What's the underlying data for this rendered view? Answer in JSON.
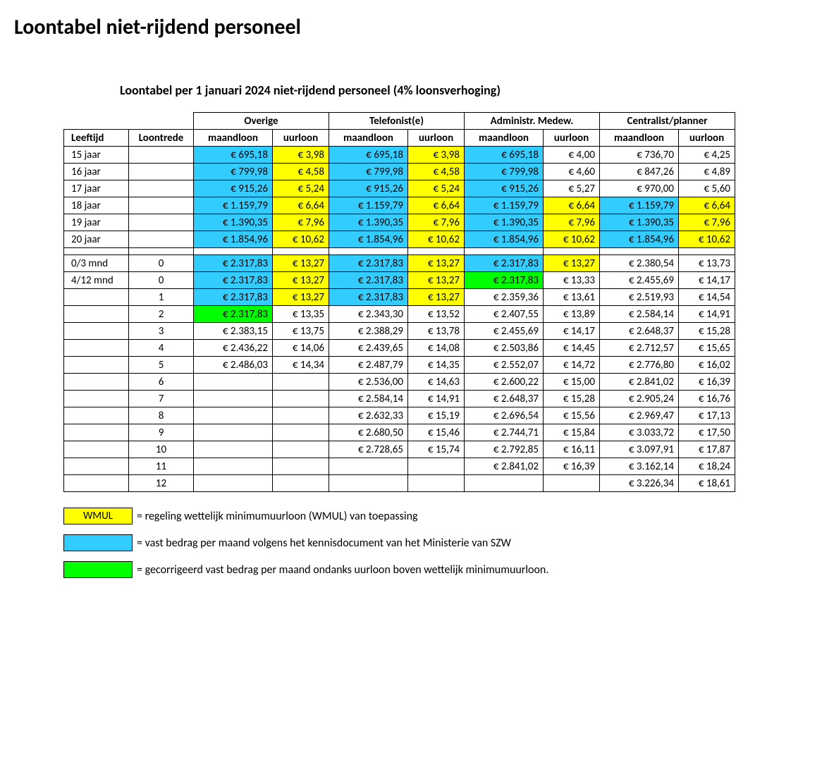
{
  "page_title": "Loontabel niet-rijdend personeel",
  "table_title": "Loontabel per 1 januari 2024 niet-rijdend personeel (4% loonsverhoging)",
  "colors": {
    "cyan": "#33ccff",
    "yellow": "#ffff00",
    "green": "#00ff00",
    "border": "#000000",
    "background": "#ffffff"
  },
  "columns": {
    "leeftijd": "Leeftijd",
    "loontrede": "Loontrede",
    "groups": [
      "Overige",
      "Telefonist(e)",
      "Administr. Medew.",
      "Centralist/planner"
    ],
    "sub": {
      "maand": "maandloon",
      "uur": "uurloon"
    }
  },
  "rows_top": [
    {
      "leeftijd": "15 jaar",
      "loontrede": "",
      "cells": [
        {
          "v": "€ 695,18",
          "c": "cyan"
        },
        {
          "v": "€ 3,98",
          "c": "yellow"
        },
        {
          "v": "€ 695,18",
          "c": "cyan"
        },
        {
          "v": "€ 3,98",
          "c": "yellow"
        },
        {
          "v": "€ 695,18",
          "c": "cyan"
        },
        {
          "v": "€ 4,00",
          "c": ""
        },
        {
          "v": "€ 736,70",
          "c": ""
        },
        {
          "v": "€ 4,25",
          "c": ""
        }
      ]
    },
    {
      "leeftijd": "16 jaar",
      "loontrede": "",
      "cells": [
        {
          "v": "€ 799,98",
          "c": "cyan"
        },
        {
          "v": "€ 4,58",
          "c": "yellow"
        },
        {
          "v": "€ 799,98",
          "c": "cyan"
        },
        {
          "v": "€ 4,58",
          "c": "yellow"
        },
        {
          "v": "€ 799,98",
          "c": "cyan"
        },
        {
          "v": "€ 4,60",
          "c": ""
        },
        {
          "v": "€ 847,26",
          "c": ""
        },
        {
          "v": "€ 4,89",
          "c": ""
        }
      ]
    },
    {
      "leeftijd": "17 jaar",
      "loontrede": "",
      "cells": [
        {
          "v": "€ 915,26",
          "c": "cyan"
        },
        {
          "v": "€ 5,24",
          "c": "yellow"
        },
        {
          "v": "€ 915,26",
          "c": "cyan"
        },
        {
          "v": "€ 5,24",
          "c": "yellow"
        },
        {
          "v": "€ 915,26",
          "c": "cyan"
        },
        {
          "v": "€ 5,27",
          "c": ""
        },
        {
          "v": "€ 970,00",
          "c": ""
        },
        {
          "v": "€ 5,60",
          "c": ""
        }
      ]
    },
    {
      "leeftijd": "18 jaar",
      "loontrede": "",
      "cells": [
        {
          "v": "€ 1.159,79",
          "c": "cyan"
        },
        {
          "v": "€ 6,64",
          "c": "yellow"
        },
        {
          "v": "€ 1.159,79",
          "c": "cyan"
        },
        {
          "v": "€ 6,64",
          "c": "yellow"
        },
        {
          "v": "€ 1.159,79",
          "c": "cyan"
        },
        {
          "v": "€ 6,64",
          "c": "yellow"
        },
        {
          "v": "€ 1.159,79",
          "c": "cyan"
        },
        {
          "v": "€ 6,64",
          "c": "yellow"
        }
      ]
    },
    {
      "leeftijd": "19 jaar",
      "loontrede": "",
      "cells": [
        {
          "v": "€ 1.390,35",
          "c": "cyan"
        },
        {
          "v": "€ 7,96",
          "c": "yellow"
        },
        {
          "v": "€ 1.390,35",
          "c": "cyan"
        },
        {
          "v": "€ 7,96",
          "c": "yellow"
        },
        {
          "v": "€ 1.390,35",
          "c": "cyan"
        },
        {
          "v": "€ 7,96",
          "c": "yellow"
        },
        {
          "v": "€ 1.390,35",
          "c": "cyan"
        },
        {
          "v": "€ 7,96",
          "c": "yellow"
        }
      ]
    },
    {
      "leeftijd": "20 jaar",
      "loontrede": "",
      "cells": [
        {
          "v": "€ 1.854,96",
          "c": "cyan"
        },
        {
          "v": "€ 10,62",
          "c": "yellow"
        },
        {
          "v": "€ 1.854,96",
          "c": "cyan"
        },
        {
          "v": "€ 10,62",
          "c": "yellow"
        },
        {
          "v": "€ 1.854,96",
          "c": "cyan"
        },
        {
          "v": "€ 10,62",
          "c": "yellow"
        },
        {
          "v": "€ 1.854,96",
          "c": "cyan"
        },
        {
          "v": "€ 10,62",
          "c": "yellow"
        }
      ]
    }
  ],
  "rows_bottom": [
    {
      "leeftijd": "0/3 mnd",
      "loontrede": "0",
      "cells": [
        {
          "v": "€ 2.317,83",
          "c": "cyan"
        },
        {
          "v": "€ 13,27",
          "c": "yellow"
        },
        {
          "v": "€ 2.317,83",
          "c": "cyan"
        },
        {
          "v": "€ 13,27",
          "c": "yellow"
        },
        {
          "v": "€ 2.317,83",
          "c": "cyan"
        },
        {
          "v": "€ 13,27",
          "c": "yellow"
        },
        {
          "v": "€ 2.380,54",
          "c": ""
        },
        {
          "v": "€ 13,73",
          "c": ""
        }
      ]
    },
    {
      "leeftijd": "4/12 mnd",
      "loontrede": "0",
      "cells": [
        {
          "v": "€ 2.317,83",
          "c": "cyan"
        },
        {
          "v": "€ 13,27",
          "c": "yellow"
        },
        {
          "v": "€ 2.317,83",
          "c": "cyan"
        },
        {
          "v": "€ 13,27",
          "c": "yellow"
        },
        {
          "v": "€ 2.317,83",
          "c": "green"
        },
        {
          "v": "€ 13,33",
          "c": ""
        },
        {
          "v": "€ 2.455,69",
          "c": ""
        },
        {
          "v": "€ 14,17",
          "c": ""
        }
      ]
    },
    {
      "leeftijd": "",
      "loontrede": "1",
      "cells": [
        {
          "v": "€ 2.317,83",
          "c": "cyan"
        },
        {
          "v": "€ 13,27",
          "c": "yellow"
        },
        {
          "v": "€ 2.317,83",
          "c": "cyan"
        },
        {
          "v": "€ 13,27",
          "c": "yellow"
        },
        {
          "v": "€ 2.359,36",
          "c": ""
        },
        {
          "v": "€ 13,61",
          "c": ""
        },
        {
          "v": "€ 2.519,93",
          "c": ""
        },
        {
          "v": "€ 14,54",
          "c": ""
        }
      ]
    },
    {
      "leeftijd": "",
      "loontrede": "2",
      "cells": [
        {
          "v": "€ 2.317,83",
          "c": "green"
        },
        {
          "v": "€ 13,35",
          "c": ""
        },
        {
          "v": "€ 2.343,30",
          "c": ""
        },
        {
          "v": "€ 13,52",
          "c": ""
        },
        {
          "v": "€ 2.407,55",
          "c": ""
        },
        {
          "v": "€ 13,89",
          "c": ""
        },
        {
          "v": "€ 2.584,14",
          "c": ""
        },
        {
          "v": "€ 14,91",
          "c": ""
        }
      ]
    },
    {
      "leeftijd": "",
      "loontrede": "3",
      "cells": [
        {
          "v": "€ 2.383,15",
          "c": ""
        },
        {
          "v": "€ 13,75",
          "c": ""
        },
        {
          "v": "€ 2.388,29",
          "c": ""
        },
        {
          "v": "€ 13,78",
          "c": ""
        },
        {
          "v": "€ 2.455,69",
          "c": ""
        },
        {
          "v": "€ 14,17",
          "c": ""
        },
        {
          "v": "€ 2.648,37",
          "c": ""
        },
        {
          "v": "€ 15,28",
          "c": ""
        }
      ]
    },
    {
      "leeftijd": "",
      "loontrede": "4",
      "cells": [
        {
          "v": "€ 2.436,22",
          "c": ""
        },
        {
          "v": "€ 14,06",
          "c": ""
        },
        {
          "v": "€ 2.439,65",
          "c": ""
        },
        {
          "v": "€ 14,08",
          "c": ""
        },
        {
          "v": "€ 2.503,86",
          "c": ""
        },
        {
          "v": "€ 14,45",
          "c": ""
        },
        {
          "v": "€ 2.712,57",
          "c": ""
        },
        {
          "v": "€ 15,65",
          "c": ""
        }
      ]
    },
    {
      "leeftijd": "",
      "loontrede": "5",
      "cells": [
        {
          "v": "€ 2.486,03",
          "c": ""
        },
        {
          "v": "€ 14,34",
          "c": ""
        },
        {
          "v": "€ 2.487,79",
          "c": ""
        },
        {
          "v": "€ 14,35",
          "c": ""
        },
        {
          "v": "€ 2.552,07",
          "c": ""
        },
        {
          "v": "€ 14,72",
          "c": ""
        },
        {
          "v": "€ 2.776,80",
          "c": ""
        },
        {
          "v": "€ 16,02",
          "c": ""
        }
      ]
    },
    {
      "leeftijd": "",
      "loontrede": "6",
      "cells": [
        {
          "v": "",
          "c": ""
        },
        {
          "v": "",
          "c": ""
        },
        {
          "v": "€ 2.536,00",
          "c": ""
        },
        {
          "v": "€ 14,63",
          "c": ""
        },
        {
          "v": "€ 2.600,22",
          "c": ""
        },
        {
          "v": "€ 15,00",
          "c": ""
        },
        {
          "v": "€ 2.841,02",
          "c": ""
        },
        {
          "v": "€ 16,39",
          "c": ""
        }
      ]
    },
    {
      "leeftijd": "",
      "loontrede": "7",
      "cells": [
        {
          "v": "",
          "c": ""
        },
        {
          "v": "",
          "c": ""
        },
        {
          "v": "€ 2.584,14",
          "c": ""
        },
        {
          "v": "€ 14,91",
          "c": ""
        },
        {
          "v": "€ 2.648,37",
          "c": ""
        },
        {
          "v": "€ 15,28",
          "c": ""
        },
        {
          "v": "€ 2.905,24",
          "c": ""
        },
        {
          "v": "€ 16,76",
          "c": ""
        }
      ]
    },
    {
      "leeftijd": "",
      "loontrede": "8",
      "cells": [
        {
          "v": "",
          "c": ""
        },
        {
          "v": "",
          "c": ""
        },
        {
          "v": "€ 2.632,33",
          "c": ""
        },
        {
          "v": "€ 15,19",
          "c": ""
        },
        {
          "v": "€ 2.696,54",
          "c": ""
        },
        {
          "v": "€ 15,56",
          "c": ""
        },
        {
          "v": "€ 2.969,47",
          "c": ""
        },
        {
          "v": "€ 17,13",
          "c": ""
        }
      ]
    },
    {
      "leeftijd": "",
      "loontrede": "9",
      "cells": [
        {
          "v": "",
          "c": ""
        },
        {
          "v": "",
          "c": ""
        },
        {
          "v": "€ 2.680,50",
          "c": ""
        },
        {
          "v": "€ 15,46",
          "c": ""
        },
        {
          "v": "€ 2.744,71",
          "c": ""
        },
        {
          "v": "€ 15,84",
          "c": ""
        },
        {
          "v": "€ 3.033,72",
          "c": ""
        },
        {
          "v": "€ 17,50",
          "c": ""
        }
      ]
    },
    {
      "leeftijd": "",
      "loontrede": "10",
      "cells": [
        {
          "v": "",
          "c": ""
        },
        {
          "v": "",
          "c": ""
        },
        {
          "v": "€ 2.728,65",
          "c": ""
        },
        {
          "v": "€ 15,74",
          "c": ""
        },
        {
          "v": "€ 2.792,85",
          "c": ""
        },
        {
          "v": "€ 16,11",
          "c": ""
        },
        {
          "v": "€ 3.097,91",
          "c": ""
        },
        {
          "v": "€ 17,87",
          "c": ""
        }
      ]
    },
    {
      "leeftijd": "",
      "loontrede": "11",
      "cells": [
        {
          "v": "",
          "c": ""
        },
        {
          "v": "",
          "c": ""
        },
        {
          "v": "",
          "c": ""
        },
        {
          "v": "",
          "c": ""
        },
        {
          "v": "€ 2.841,02",
          "c": ""
        },
        {
          "v": "€ 16,39",
          "c": ""
        },
        {
          "v": "€ 3.162,14",
          "c": ""
        },
        {
          "v": "€ 18,24",
          "c": ""
        }
      ]
    },
    {
      "leeftijd": "",
      "loontrede": "12",
      "cells": [
        {
          "v": "",
          "c": ""
        },
        {
          "v": "",
          "c": ""
        },
        {
          "v": "",
          "c": ""
        },
        {
          "v": "",
          "c": ""
        },
        {
          "v": "",
          "c": ""
        },
        {
          "v": "",
          "c": ""
        },
        {
          "v": "€ 3.226,34",
          "c": ""
        },
        {
          "v": "€ 18,61",
          "c": ""
        }
      ]
    }
  ],
  "legend": [
    {
      "box_text": "WMUL",
      "box_color": "yellow",
      "text": "= regeling wettelijk minimumuurloon (WMUL) van toepassing"
    },
    {
      "box_text": "",
      "box_color": "cyan",
      "text": "= vast bedrag per maand volgens het kennisdocument van het Ministerie van SZW"
    },
    {
      "box_text": "",
      "box_color": "green",
      "text": "= gecorrigeerd vast bedrag per maand ondanks uurloon boven wettelijk minimumuurloon."
    }
  ]
}
